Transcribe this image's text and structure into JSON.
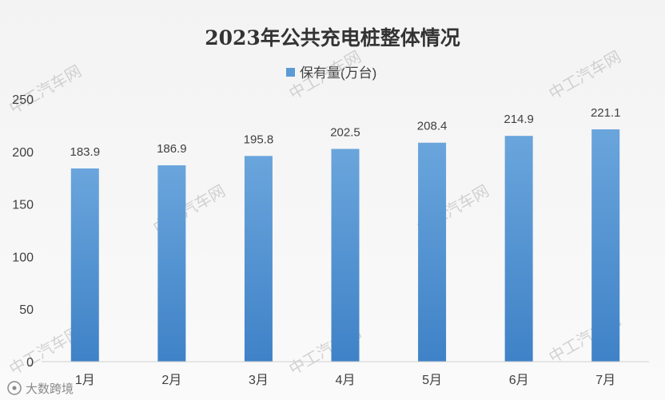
{
  "chart_data": {
    "type": "bar",
    "title": "2023年公共充电桩整体情况",
    "categories": [
      "1月",
      "2月",
      "3月",
      "4月",
      "5月",
      "6月",
      "7月"
    ],
    "series": [
      {
        "name": "保有量(万台)",
        "values": [
          183.9,
          186.9,
          195.8,
          202.5,
          208.4,
          214.9,
          221.1
        ]
      }
    ],
    "data_labels": [
      "183.9",
      "186.9",
      "195.8",
      "202.5",
      "208.4",
      "214.9",
      "221.1"
    ],
    "y_ticks": [
      "0",
      "50",
      "100",
      "150",
      "200",
      "250"
    ],
    "ylim": [
      0,
      250
    ],
    "legend_position": "top-center",
    "grid": false,
    "bar_color": "#5b9bd5"
  },
  "watermark": {
    "text": "中工汽车网",
    "logo_text": "大数跨境"
  }
}
